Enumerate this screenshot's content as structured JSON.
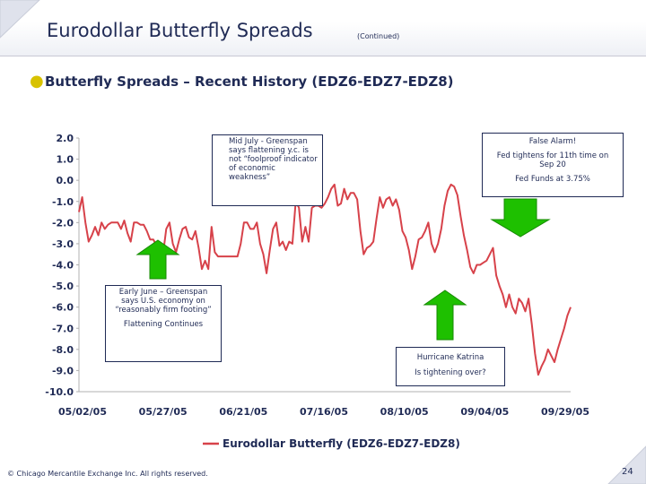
{
  "header": {
    "title": "Eurodollar Butterfly Spreads",
    "continued": "(Continued)",
    "subtitle": "Butterfly Spreads – Recent History (EDZ6-EDZ7-EDZ8)"
  },
  "annotations": {
    "mid_july": "Mid July - Greenspan says flattening y.c. is not “foolproof indicator of economic weakness”",
    "early_june": "Early June – Greenspan says U.S. economy on “reasonably firm footing”",
    "flattening": "Flattening Continues",
    "false_alarm": "False Alarm!",
    "fed_tightens": "Fed tightens for 11th time on Sep 20",
    "fed_funds": "Fed Funds at 3.75%",
    "hurricane": "Hurricane Katrina",
    "is_tightening": "Is tightening over?"
  },
  "footer": {
    "copyright": "© Chicago Mercantile Exchange Inc. All rights reserved.",
    "page_number": "24"
  },
  "colors": {
    "series": "#d7424a",
    "arrow": "#1ec000",
    "text": "#1f2a55",
    "gridline": "#000000"
  },
  "chart_data": {
    "type": "line",
    "title": "Butterfly Spreads – Recent History (EDZ6-EDZ7-EDZ8)",
    "xlabel": "",
    "ylabel": "",
    "ylim": [
      -10.0,
      2.0
    ],
    "yticks": [
      "2.0",
      "1.0",
      "0.0",
      "-1.0",
      "-2.0",
      "-3.0",
      "-4.0",
      "-5.0",
      "-6.0",
      "-7.0",
      "-8.0",
      "-9.0",
      "-10.0"
    ],
    "xticks": [
      "05/02/05",
      "05/27/05",
      "06/21/05",
      "07/16/05",
      "08/10/05",
      "09/04/05",
      "09/29/05"
    ],
    "legend": "Eurodollar Butterfly (EDZ6-EDZ7-EDZ8)",
    "legend_position": "bottom",
    "series": [
      {
        "name": "Eurodollar Butterfly (EDZ6-EDZ7-EDZ8)",
        "x_days": [
          0,
          1,
          2,
          3,
          4,
          5,
          6,
          7,
          8,
          9,
          10,
          11,
          12,
          13,
          14,
          15,
          16,
          17,
          18,
          19,
          20,
          21,
          22,
          23,
          24,
          25,
          26,
          27,
          28,
          29,
          30,
          31,
          32,
          33,
          34,
          35,
          36,
          37,
          38,
          39,
          40,
          41,
          42,
          43,
          44,
          45,
          46,
          47,
          48,
          49,
          50,
          51,
          52,
          53,
          54,
          55,
          56,
          57,
          58,
          59,
          60,
          61,
          62,
          63,
          64,
          65,
          66,
          67,
          68,
          69,
          70,
          71,
          72,
          73,
          74,
          75,
          76,
          77,
          78,
          79,
          80,
          81,
          82,
          83,
          84,
          85,
          86,
          87,
          88,
          89,
          90,
          91,
          92,
          93,
          94,
          95,
          96,
          97,
          98,
          99,
          100,
          101,
          102,
          103,
          104,
          105,
          106,
          107,
          108,
          109,
          110,
          111,
          112,
          113,
          114,
          115,
          116,
          117,
          118,
          119,
          120,
          121,
          122,
          123,
          124,
          125,
          126,
          127,
          128,
          129,
          130,
          131,
          132,
          133,
          134,
          135,
          136,
          137,
          138,
          139,
          140,
          141,
          142,
          143,
          144,
          145,
          146,
          147,
          148,
          149,
          150,
          151,
          152
        ],
        "values": [
          -1.5,
          -0.8,
          -2.0,
          -2.9,
          -2.6,
          -2.2,
          -2.6,
          -2.0,
          -2.3,
          -2.1,
          -2.0,
          -2.0,
          -2.0,
          -2.3,
          -1.9,
          -2.5,
          -2.9,
          -2.0,
          -2.0,
          -2.1,
          -2.1,
          -2.4,
          -2.8,
          -2.8,
          -3.1,
          -3.5,
          -3.5,
          -2.3,
          -2.0,
          -3.0,
          -3.4,
          -2.8,
          -2.3,
          -2.2,
          -2.7,
          -2.8,
          -2.4,
          -3.2,
          -4.2,
          -3.8,
          -4.2,
          -2.2,
          -3.4,
          -3.6,
          -3.6,
          -3.6,
          -3.6,
          -3.6,
          -3.6,
          -3.6,
          -3.0,
          -2.0,
          -2.0,
          -2.3,
          -2.3,
          -2.0,
          -3.0,
          -3.5,
          -4.4,
          -3.3,
          -2.3,
          -2.0,
          -3.1,
          -2.9,
          -3.3,
          -2.9,
          -3.0,
          -1.0,
          -1.3,
          -2.9,
          -2.2,
          -2.9,
          -1.3,
          -1.2,
          -1.2,
          -1.3,
          -1.1,
          -0.8,
          -0.4,
          -0.2,
          -1.2,
          -1.1,
          -0.4,
          -0.9,
          -0.6,
          -0.6,
          -0.9,
          -2.4,
          -3.5,
          -3.2,
          -3.1,
          -2.9,
          -1.8,
          -0.8,
          -1.3,
          -0.9,
          -0.8,
          -1.2,
          -0.9,
          -1.4,
          -2.4,
          -2.7,
          -3.3,
          -4.2,
          -3.6,
          -2.8,
          -2.7,
          -2.4,
          -2.0,
          -3.0,
          -3.4,
          -3.0,
          -2.3,
          -1.2,
          -0.5,
          -0.2,
          -0.3,
          -0.7,
          -1.7,
          -2.6,
          -3.3,
          -4.1,
          -4.4,
          -4.0,
          -4.0,
          -3.9,
          -3.8,
          -3.5,
          -3.2,
          -4.5,
          -5.0,
          -5.4,
          -6.0,
          -5.4,
          -6.0,
          -6.3,
          -5.6,
          -5.8,
          -6.2,
          -5.6,
          -6.8,
          -8.2,
          -9.2,
          -8.8,
          -8.5,
          -8.0,
          -8.3,
          -8.6,
          -8.0,
          -7.5,
          -7.0,
          -6.4,
          -6.0
        ]
      }
    ]
  }
}
